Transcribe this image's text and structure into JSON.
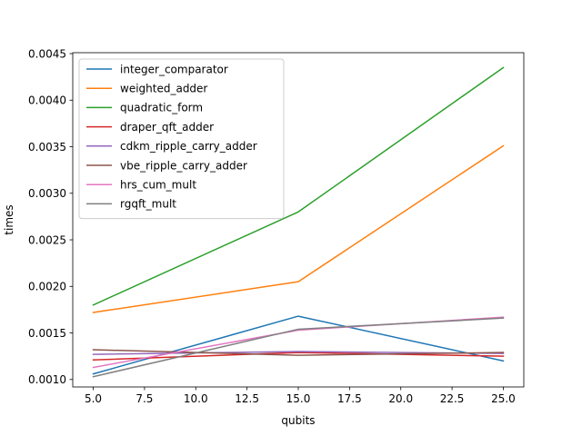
{
  "chart_data": {
    "type": "line",
    "title": "",
    "xlabel": "qubits",
    "ylabel": "times",
    "x": [
      5,
      15,
      25
    ],
    "xlim": [
      4.0,
      26.0
    ],
    "ylim": [
      0.00092,
      0.00451
    ],
    "xticks": [
      5.0,
      7.5,
      10.0,
      12.5,
      15.0,
      17.5,
      20.0,
      22.5,
      25.0
    ],
    "xtick_labels": [
      "5.0",
      "7.5",
      "10.0",
      "12.5",
      "15.0",
      "17.5",
      "20.0",
      "22.5",
      "25.0"
    ],
    "yticks": [
      0.001,
      0.0015,
      0.002,
      0.0025,
      0.003,
      0.0035,
      0.004,
      0.0045
    ],
    "ytick_labels": [
      "0.0010",
      "0.0015",
      "0.0020",
      "0.0025",
      "0.0030",
      "0.0035",
      "0.0040",
      "0.0045"
    ],
    "grid": false,
    "legend_position": "top-left",
    "series": [
      {
        "name": "integer_comparator",
        "color": "#1f77b4",
        "values": [
          0.00106,
          0.00168,
          0.0012
        ]
      },
      {
        "name": "weighted_adder",
        "color": "#ff7f0e",
        "values": [
          0.00172,
          0.00205,
          0.00351
        ]
      },
      {
        "name": "quadratic_form",
        "color": "#2ca02c",
        "values": [
          0.0018,
          0.0028,
          0.00435
        ]
      },
      {
        "name": "draper_qft_adder",
        "color": "#d62728",
        "values": [
          0.00121,
          0.00129,
          0.00125
        ]
      },
      {
        "name": "cdkm_ripple_carry_adder",
        "color": "#9467bd",
        "values": [
          0.00127,
          0.0013,
          0.00128
        ]
      },
      {
        "name": "vbe_ripple_carry_adder",
        "color": "#8c564b",
        "values": [
          0.00132,
          0.00126,
          0.00129
        ]
      },
      {
        "name": "hrs_cum_mult",
        "color": "#e377c2",
        "values": [
          0.00113,
          0.00153,
          0.00167
        ]
      },
      {
        "name": "rgqft_mult",
        "color": "#7f7f7f",
        "values": [
          0.00103,
          0.00154,
          0.00166
        ]
      }
    ]
  }
}
